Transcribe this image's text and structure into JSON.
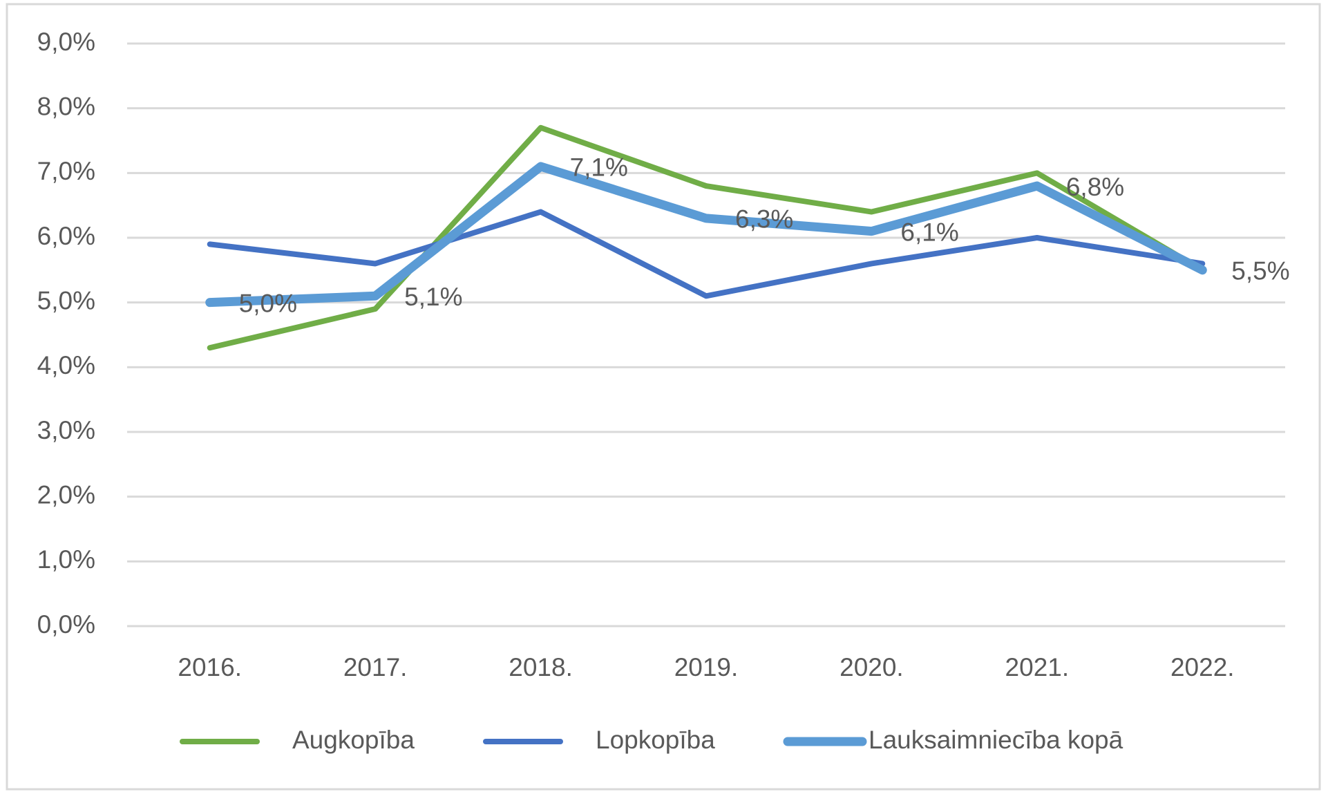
{
  "chart_data": {
    "type": "line",
    "categories": [
      "2016.",
      "2017.",
      "2018.",
      "2019.",
      "2020.",
      "2021.",
      "2022."
    ],
    "series": [
      {
        "name": "Augkopība",
        "color": "#70ad47",
        "values": [
          4.3,
          4.9,
          7.7,
          6.8,
          6.4,
          7.0,
          5.5
        ]
      },
      {
        "name": "Lopkopība",
        "color": "#4472c4",
        "values": [
          5.9,
          5.6,
          6.4,
          5.1,
          5.6,
          6.0,
          5.6
        ]
      },
      {
        "name": "Lauksaimniecība kopā",
        "color": "#5b9bd5",
        "values": [
          5.0,
          5.1,
          7.1,
          6.3,
          6.1,
          6.8,
          5.5
        ],
        "value_labels": [
          "5,0%",
          "5,1%",
          "7,1%",
          "6,3%",
          "6,1%",
          "6,8%",
          "5,5%"
        ]
      }
    ],
    "ylim": [
      0,
      9
    ],
    "yticks": [
      {
        "value": 0,
        "label": "0,0%"
      },
      {
        "value": 1,
        "label": "1,0%"
      },
      {
        "value": 2,
        "label": "2,0%"
      },
      {
        "value": 3,
        "label": "3,0%"
      },
      {
        "value": 4,
        "label": "4,0%"
      },
      {
        "value": 5,
        "label": "5,0%"
      },
      {
        "value": 6,
        "label": "6,0%"
      },
      {
        "value": 7,
        "label": "7,0%"
      },
      {
        "value": 8,
        "label": "8,0%"
      },
      {
        "value": 9,
        "label": "9,0%"
      }
    ],
    "grid": true,
    "legend": "bottom"
  }
}
